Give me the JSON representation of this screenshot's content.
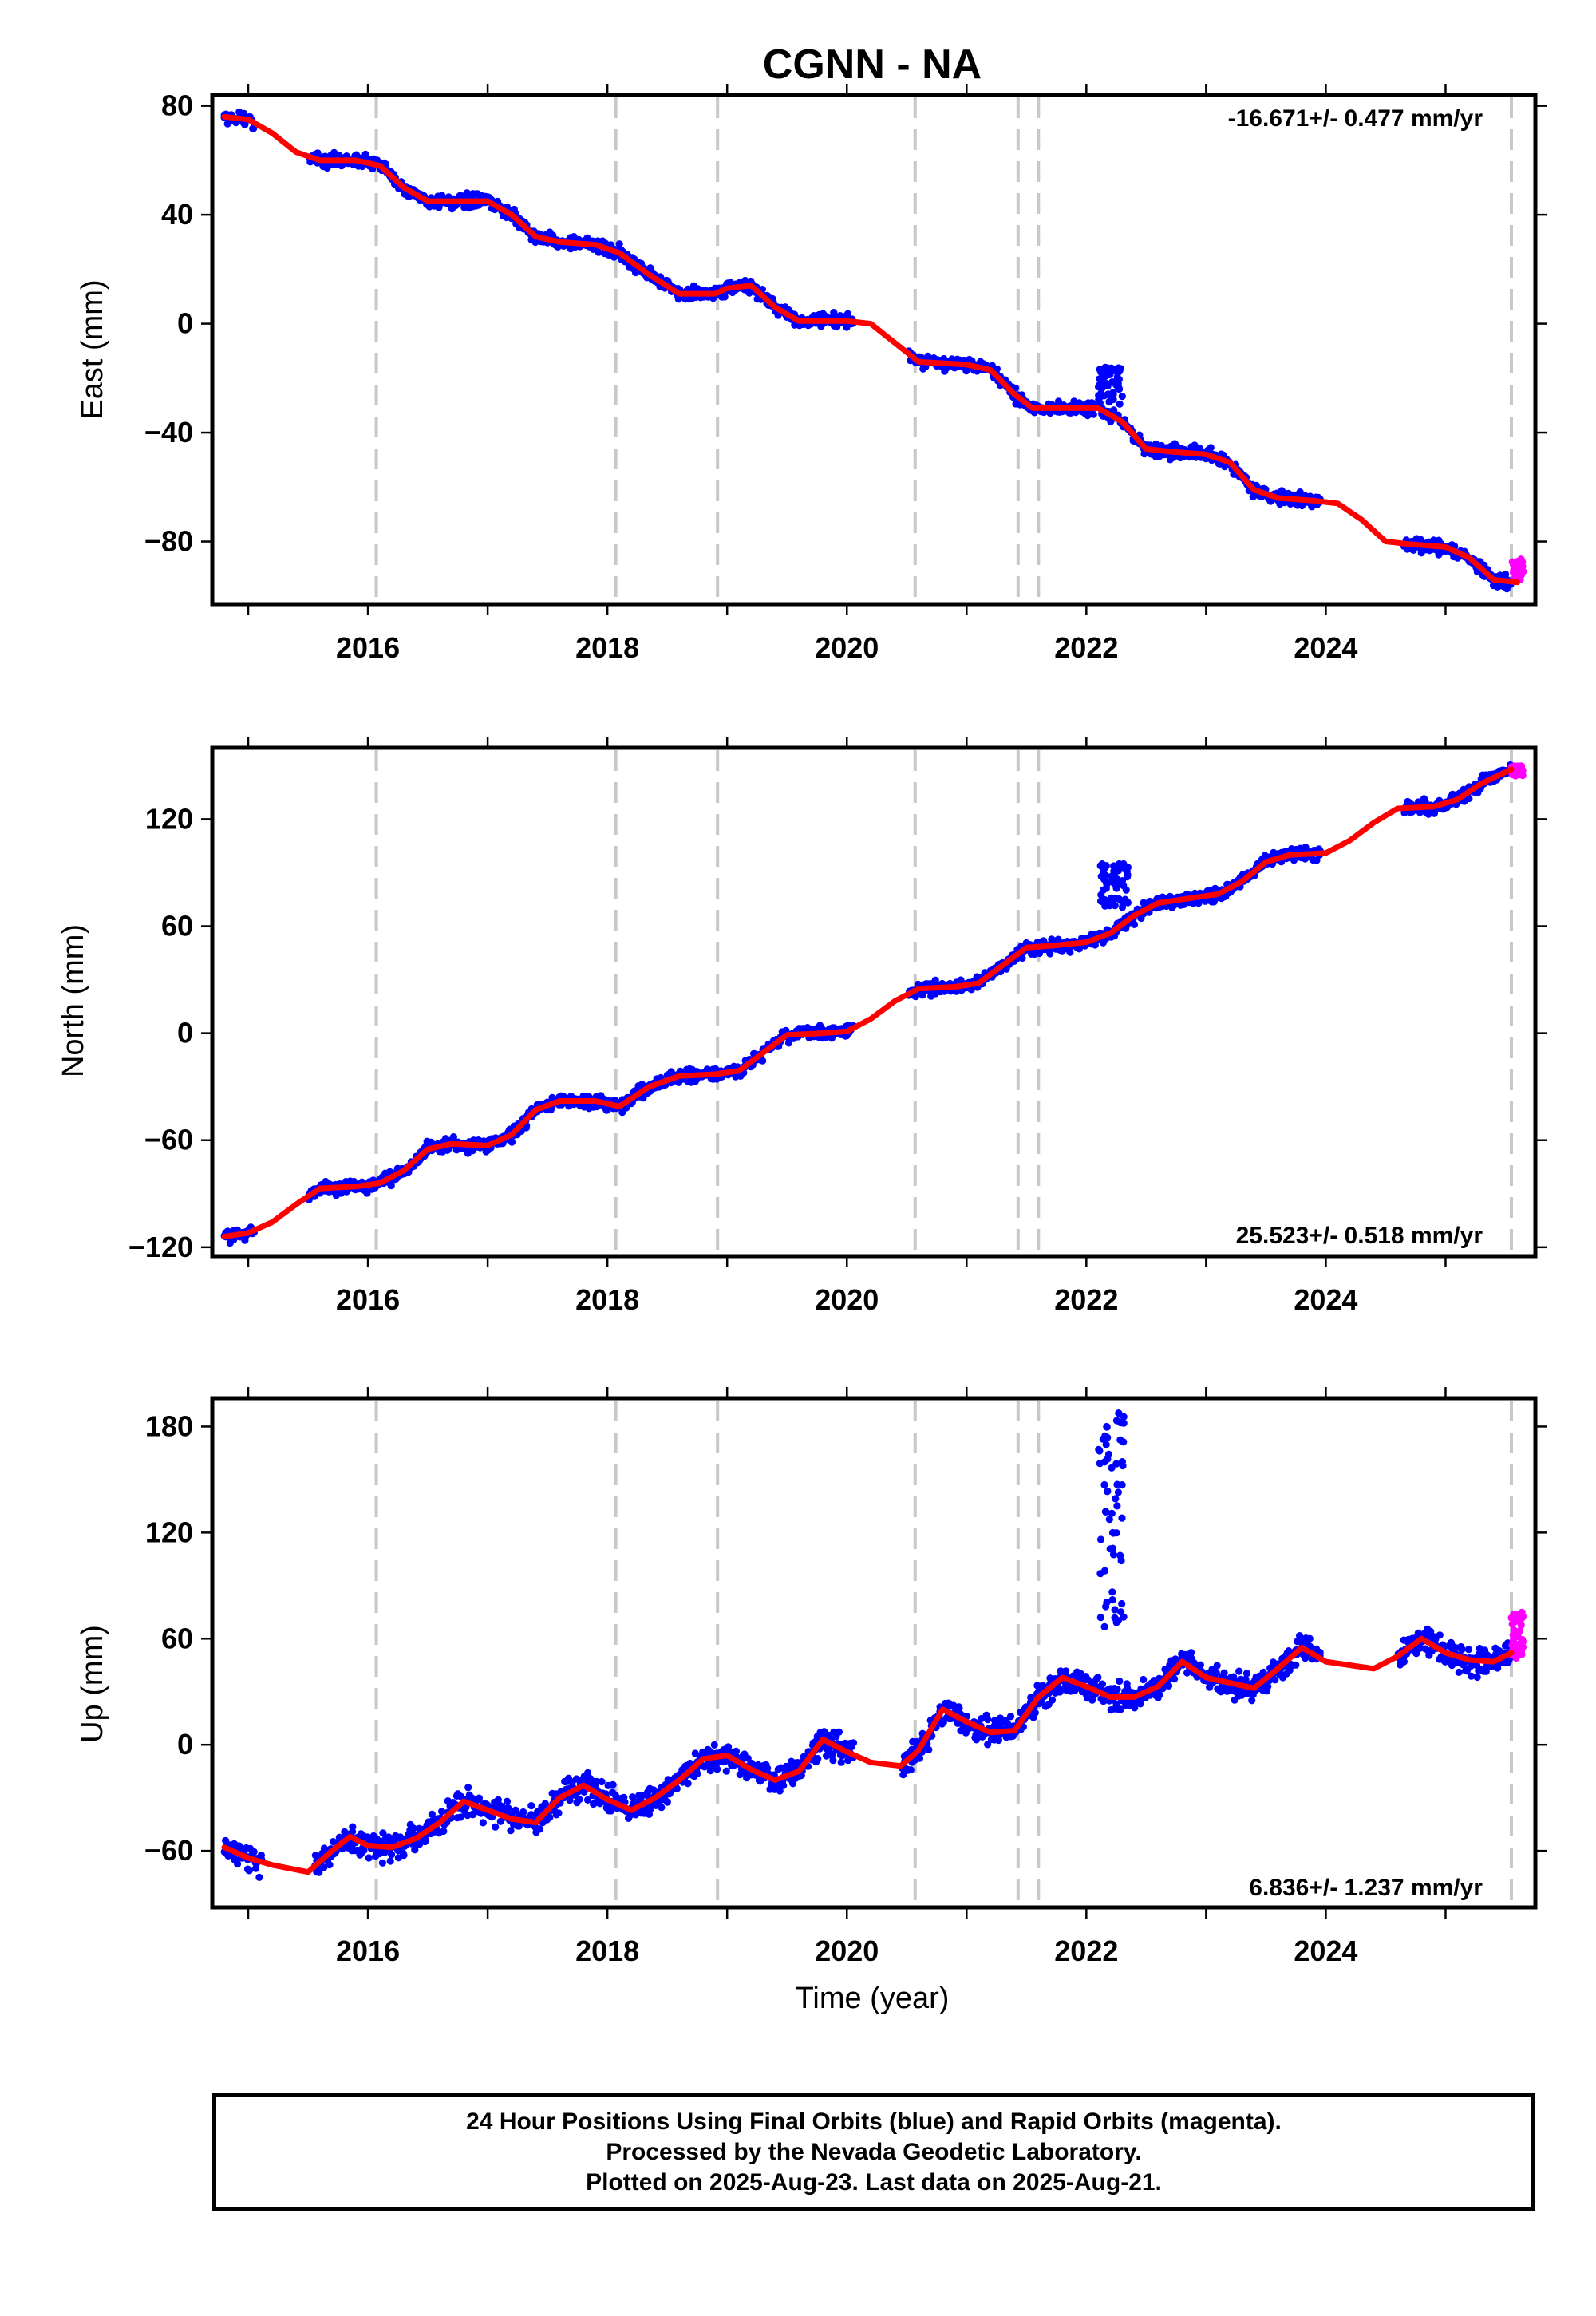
{
  "title": "CGNN - NA",
  "colors": {
    "final": "#0000ff",
    "rapid": "#ff00ff",
    "model": "#ff0000",
    "events": "#c8c8c8"
  },
  "event_years": [
    2016.07,
    2018.07,
    2018.92,
    2020.57,
    2021.43,
    2021.6,
    2025.55
  ],
  "chart_data": [
    {
      "type": "scatter",
      "name": "east",
      "ylabel": "East (mm)",
      "rate": "-16.671+/- 0.477 mm/yr",
      "rate_position": "top-right",
      "xlim": [
        2014.7,
        2025.75
      ],
      "ylim": [
        -103,
        84
      ],
      "yticks": [
        80,
        40,
        0,
        -40,
        -80
      ],
      "xticks": [
        2016,
        2018,
        2020,
        2022,
        2024
      ],
      "gaps": [
        [
          2015.05,
          2015.5
        ],
        [
          2020.05,
          2020.5
        ],
        [
          2023.95,
          2024.65
        ]
      ],
      "model": [
        [
          2014.8,
          76
        ],
        [
          2015.0,
          75
        ],
        [
          2015.2,
          70
        ],
        [
          2015.4,
          63
        ],
        [
          2015.6,
          60
        ],
        [
          2015.9,
          60
        ],
        [
          2016.1,
          58
        ],
        [
          2016.3,
          50
        ],
        [
          2016.5,
          45
        ],
        [
          2016.8,
          45
        ],
        [
          2017.0,
          45
        ],
        [
          2017.2,
          40
        ],
        [
          2017.4,
          32
        ],
        [
          2017.6,
          30
        ],
        [
          2017.9,
          29
        ],
        [
          2018.1,
          26
        ],
        [
          2018.35,
          18
        ],
        [
          2018.6,
          11
        ],
        [
          2018.9,
          11
        ],
        [
          2019.0,
          13
        ],
        [
          2019.2,
          14
        ],
        [
          2019.4,
          6
        ],
        [
          2019.6,
          1
        ],
        [
          2020.0,
          1
        ],
        [
          2020.2,
          0
        ],
        [
          2020.4,
          -7
        ],
        [
          2020.6,
          -14
        ],
        [
          2021.0,
          -15
        ],
        [
          2021.2,
          -17
        ],
        [
          2021.4,
          -26
        ],
        [
          2021.55,
          -31
        ],
        [
          2021.8,
          -31
        ],
        [
          2022.1,
          -31
        ],
        [
          2022.3,
          -36
        ],
        [
          2022.5,
          -46
        ],
        [
          2022.7,
          -47
        ],
        [
          2023.0,
          -48
        ],
        [
          2023.2,
          -51
        ],
        [
          2023.4,
          -61
        ],
        [
          2023.6,
          -64
        ],
        [
          2023.9,
          -65
        ],
        [
          2024.1,
          -66
        ],
        [
          2024.3,
          -72
        ],
        [
          2024.5,
          -80
        ],
        [
          2024.7,
          -81
        ],
        [
          2025.0,
          -82
        ],
        [
          2025.2,
          -86
        ],
        [
          2025.4,
          -94
        ],
        [
          2025.6,
          -95
        ]
      ],
      "rapid_range": [
        2025.55,
        2025.65
      ],
      "rapid_y": [
        -86,
        -94
      ],
      "spikes": [
        {
          "x": [
            2022.1,
            2022.3
          ],
          "y": [
            -30,
            -16
          ]
        }
      ]
    },
    {
      "type": "scatter",
      "name": "north",
      "ylabel": "North (mm)",
      "rate": "25.523+/- 0.518 mm/yr",
      "rate_position": "bottom-right",
      "xlim": [
        2014.7,
        2025.75
      ],
      "ylim": [
        -125,
        160
      ],
      "yticks": [
        120,
        60,
        0,
        -60,
        -120
      ],
      "xticks": [
        2016,
        2018,
        2020,
        2022,
        2024
      ],
      "gaps": [
        [
          2015.05,
          2015.5
        ],
        [
          2020.05,
          2020.5
        ],
        [
          2023.95,
          2024.65
        ]
      ],
      "model": [
        [
          2014.8,
          -114
        ],
        [
          2015.0,
          -112
        ],
        [
          2015.2,
          -106
        ],
        [
          2015.4,
          -96
        ],
        [
          2015.6,
          -87
        ],
        [
          2015.9,
          -86
        ],
        [
          2016.1,
          -84
        ],
        [
          2016.3,
          -77
        ],
        [
          2016.5,
          -65
        ],
        [
          2016.7,
          -62
        ],
        [
          2017.0,
          -63
        ],
        [
          2017.2,
          -57
        ],
        [
          2017.4,
          -43
        ],
        [
          2017.6,
          -38
        ],
        [
          2017.9,
          -38
        ],
        [
          2018.1,
          -41
        ],
        [
          2018.35,
          -30
        ],
        [
          2018.6,
          -24
        ],
        [
          2018.9,
          -23
        ],
        [
          2019.1,
          -21
        ],
        [
          2019.3,
          -11
        ],
        [
          2019.5,
          -1
        ],
        [
          2019.8,
          0
        ],
        [
          2020.0,
          1
        ],
        [
          2020.2,
          8
        ],
        [
          2020.4,
          18
        ],
        [
          2020.6,
          25
        ],
        [
          2020.9,
          26
        ],
        [
          2021.1,
          28
        ],
        [
          2021.3,
          38
        ],
        [
          2021.5,
          48
        ],
        [
          2021.7,
          49
        ],
        [
          2022.0,
          51
        ],
        [
          2022.2,
          56
        ],
        [
          2022.4,
          66
        ],
        [
          2022.6,
          73
        ],
        [
          2022.9,
          76
        ],
        [
          2023.1,
          78
        ],
        [
          2023.3,
          85
        ],
        [
          2023.5,
          96
        ],
        [
          2023.7,
          100
        ],
        [
          2024.0,
          101
        ],
        [
          2024.2,
          108
        ],
        [
          2024.4,
          118
        ],
        [
          2024.6,
          126
        ],
        [
          2024.9,
          127
        ],
        [
          2025.1,
          131
        ],
        [
          2025.3,
          140
        ],
        [
          2025.55,
          148
        ]
      ],
      "rapid_range": [
        2025.55,
        2025.65
      ],
      "rapid_y": [
        144,
        150
      ],
      "spikes": [
        {
          "x": [
            2022.1,
            2022.35
          ],
          "y": [
            70,
            95
          ]
        }
      ]
    },
    {
      "type": "scatter",
      "name": "up",
      "ylabel": "Up (mm)",
      "xlabel": "Time (year)",
      "rate": "6.836+/- 1.237 mm/yr",
      "rate_position": "bottom-right",
      "xlim": [
        2014.7,
        2025.75
      ],
      "ylim": [
        -92,
        196
      ],
      "yticks": [
        180,
        120,
        60,
        0,
        -60
      ],
      "xticks": [
        2016,
        2018,
        2020,
        2022,
        2024
      ],
      "gaps": [
        [
          2015.1,
          2015.55
        ],
        [
          2020.05,
          2020.45
        ],
        [
          2023.95,
          2024.6
        ]
      ],
      "model": [
        [
          2014.8,
          -58
        ],
        [
          2015.0,
          -64
        ],
        [
          2015.2,
          -68
        ],
        [
          2015.5,
          -72
        ],
        [
          2015.7,
          -60
        ],
        [
          2015.85,
          -52
        ],
        [
          2016.0,
          -57
        ],
        [
          2016.2,
          -58
        ],
        [
          2016.4,
          -53
        ],
        [
          2016.6,
          -44
        ],
        [
          2016.8,
          -32
        ],
        [
          2017.0,
          -37
        ],
        [
          2017.2,
          -42
        ],
        [
          2017.4,
          -44
        ],
        [
          2017.6,
          -30
        ],
        [
          2017.8,
          -23
        ],
        [
          2018.0,
          -31
        ],
        [
          2018.2,
          -37
        ],
        [
          2018.4,
          -30
        ],
        [
          2018.6,
          -20
        ],
        [
          2018.8,
          -8
        ],
        [
          2019.0,
          -6
        ],
        [
          2019.2,
          -14
        ],
        [
          2019.4,
          -20
        ],
        [
          2019.6,
          -15
        ],
        [
          2019.8,
          3
        ],
        [
          2020.0,
          -4
        ],
        [
          2020.2,
          -10
        ],
        [
          2020.45,
          -12
        ],
        [
          2020.6,
          -3
        ],
        [
          2020.8,
          20
        ],
        [
          2021.0,
          13
        ],
        [
          2021.2,
          7
        ],
        [
          2021.4,
          8
        ],
        [
          2021.6,
          27
        ],
        [
          2021.8,
          38
        ],
        [
          2022.0,
          33
        ],
        [
          2022.2,
          27
        ],
        [
          2022.4,
          27
        ],
        [
          2022.6,
          33
        ],
        [
          2022.8,
          47
        ],
        [
          2023.0,
          38
        ],
        [
          2023.2,
          35
        ],
        [
          2023.4,
          32
        ],
        [
          2023.6,
          43
        ],
        [
          2023.8,
          55
        ],
        [
          2024.0,
          47
        ],
        [
          2024.2,
          45
        ],
        [
          2024.4,
          43
        ],
        [
          2024.6,
          50
        ],
        [
          2024.8,
          60
        ],
        [
          2025.0,
          52
        ],
        [
          2025.2,
          48
        ],
        [
          2025.4,
          47
        ],
        [
          2025.55,
          52
        ]
      ],
      "rapid_range": [
        2025.55,
        2025.65
      ],
      "rapid_y": [
        48,
        75
      ],
      "spikes": [
        {
          "x": [
            2022.1,
            2022.32
          ],
          "y": [
            60,
            190
          ]
        }
      ]
    }
  ],
  "footer": {
    "line1": "24 Hour Positions Using Final Orbits (blue) and Rapid Orbits (magenta).",
    "line2": "Processed by the Nevada Geodetic Laboratory.",
    "line3": "Plotted on 2025-Aug-23. Last data on 2025-Aug-21."
  }
}
